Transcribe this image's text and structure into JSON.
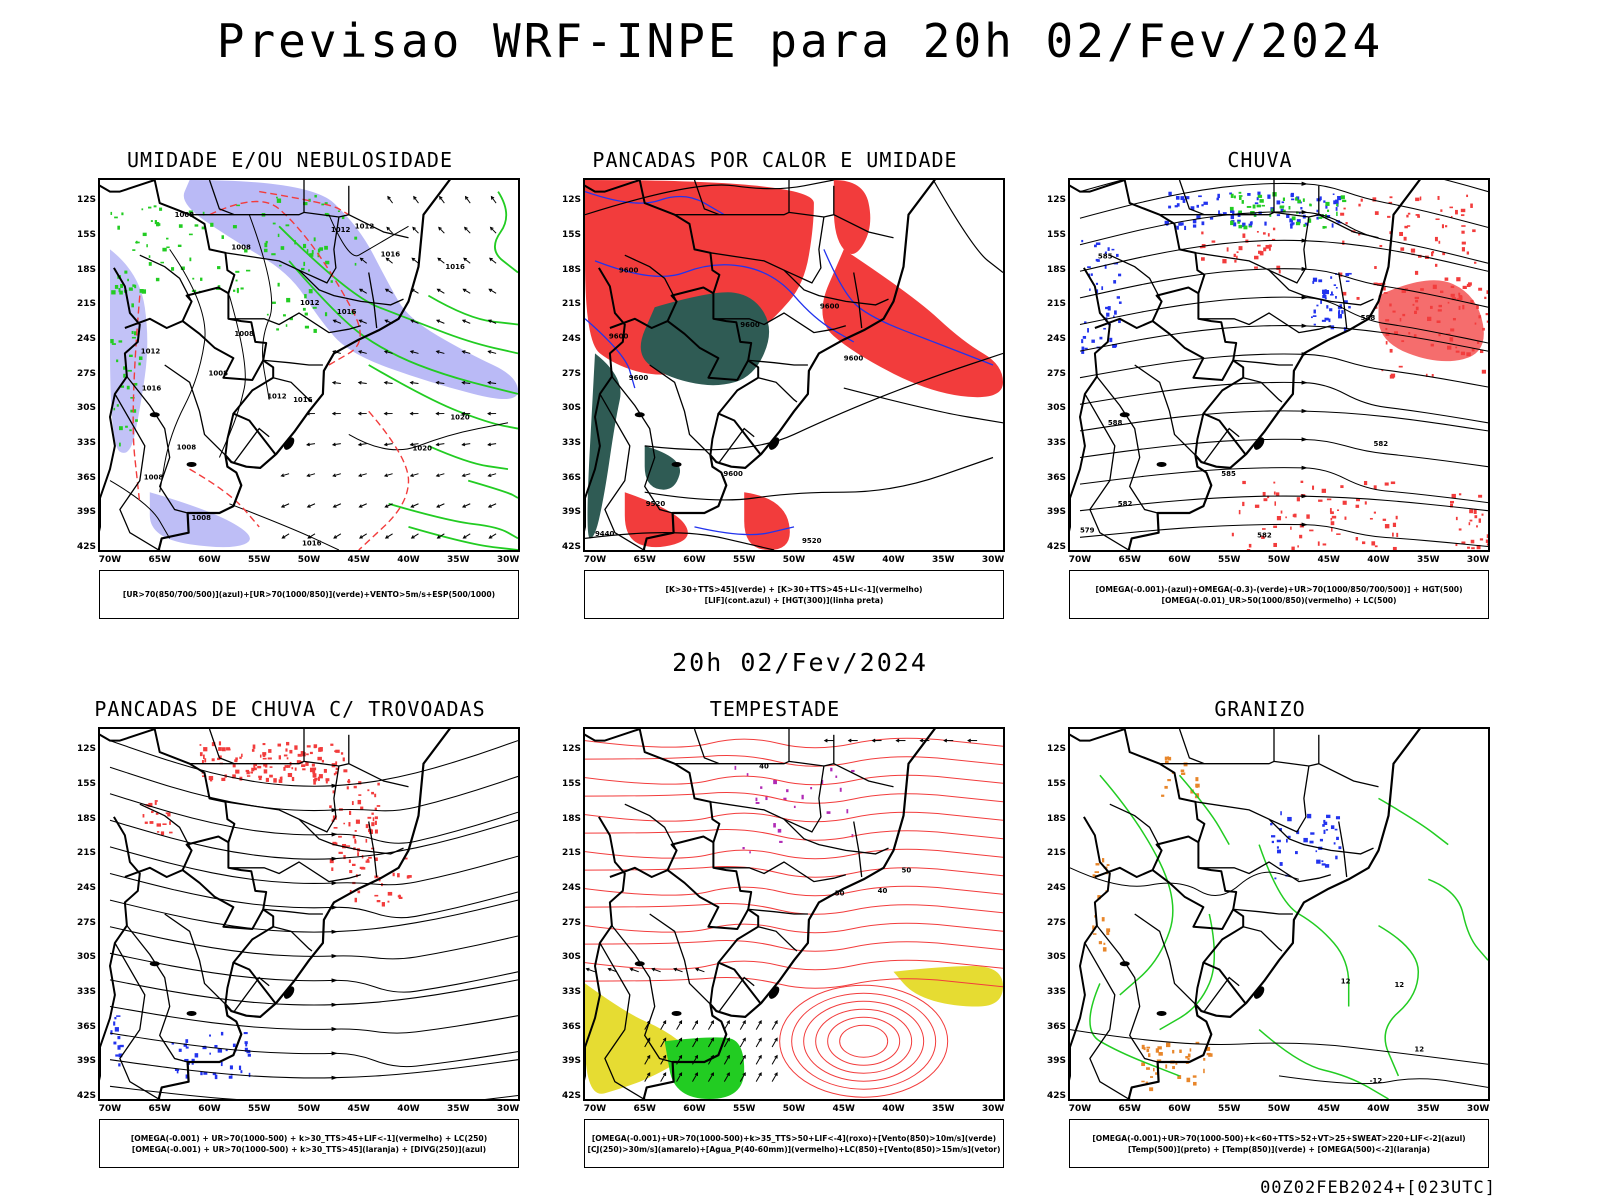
{
  "header": {
    "title": "Previsao WRF-INPE  para 20h 02/Fev/2024",
    "mid_title": "20h 02/Fev/2024",
    "footer_stamp": "00Z02FEB2024+[023UTC]"
  },
  "axes": {
    "lat_labels": [
      "12S",
      "15S",
      "18S",
      "21S",
      "24S",
      "27S",
      "30S",
      "33S",
      "36S",
      "39S",
      "42S"
    ],
    "lon_labels": [
      "70W",
      "65W",
      "60W",
      "55W",
      "50W",
      "45W",
      "40W",
      "35W",
      "30W"
    ],
    "lat_range": [
      -42,
      -10
    ],
    "lon_range": [
      -71,
      -29
    ]
  },
  "colors": {
    "umidade_alta": "#b3b3f5",
    "umidade_baixa": "#22cc22",
    "vermelho": "#f23c3c",
    "azul": "#2233ee",
    "verde": "#22cc22",
    "verde_escuro": "#2f5b54",
    "amarelo": "#e6dc32",
    "laranja": "#e8862a",
    "roxo": "#b02ab5",
    "preto": "#000000"
  },
  "chart_data": [
    {
      "type": "map",
      "title": "UMIDADE E/OU NEBULOSIDADE",
      "legend": [
        "[UR>70(850/700/500)](azul)+[UR>70(1000/850)](verde)+VENTO>5m/s+ESP(500/1000)"
      ],
      "contour_labels": [
        {
          "text": "1008",
          "lon": -63.5,
          "lat": -13.2
        },
        {
          "text": "1012",
          "lon": -47.8,
          "lat": -14.5
        },
        {
          "text": "1012",
          "lon": -45.4,
          "lat": -14.2
        },
        {
          "text": "1016",
          "lon": -42.8,
          "lat": -16.6
        },
        {
          "text": "1016",
          "lon": -36.3,
          "lat": -17.7
        },
        {
          "text": "1008",
          "lon": -57.8,
          "lat": -16.0
        },
        {
          "text": "1012",
          "lon": -50.9,
          "lat": -20.8
        },
        {
          "text": "1016",
          "lon": -47.2,
          "lat": -21.6
        },
        {
          "text": "1008",
          "lon": -57.5,
          "lat": -23.5
        },
        {
          "text": "1008",
          "lon": -60.1,
          "lat": -26.9
        },
        {
          "text": "1012",
          "lon": -54.2,
          "lat": -28.9
        },
        {
          "text": "1016",
          "lon": -51.6,
          "lat": -29.2
        },
        {
          "text": "1020",
          "lon": -35.8,
          "lat": -30.7
        },
        {
          "text": "1020",
          "lon": -39.6,
          "lat": -33.4
        },
        {
          "text": "1008",
          "lon": -63.3,
          "lat": -33.3
        },
        {
          "text": "1008",
          "lon": -66.6,
          "lat": -35.9
        },
        {
          "text": "1008",
          "lon": -61.8,
          "lat": -39.4
        },
        {
          "text": "1016",
          "lon": -50.7,
          "lat": -41.6
        },
        {
          "text": "1012",
          "lon": -66.9,
          "lat": -25.0
        },
        {
          "text": "1016",
          "lon": -66.8,
          "lat": -28.2
        }
      ]
    },
    {
      "type": "map",
      "title": "PANCADAS POR CALOR E UMIDADE",
      "legend": [
        "[K>30+TTS>45](verde) + [K>30+TTS>45+LI<-1](vermelho)",
        "[LIF](cont.azul) + [HGT(300)](linha preta)"
      ],
      "contour_labels": [
        {
          "text": "9600",
          "lon": -67.6,
          "lat": -18.0
        },
        {
          "text": "9600",
          "lon": -68.6,
          "lat": -23.7
        },
        {
          "text": "9600",
          "lon": -55.4,
          "lat": -22.7
        },
        {
          "text": "9600",
          "lon": -47.4,
          "lat": -21.1
        },
        {
          "text": "9600",
          "lon": -45.0,
          "lat": -25.6
        },
        {
          "text": "9600",
          "lon": -66.6,
          "lat": -27.3
        },
        {
          "text": "9600",
          "lon": -57.1,
          "lat": -35.6
        },
        {
          "text": "9520",
          "lon": -64.9,
          "lat": -38.2
        },
        {
          "text": "9440",
          "lon": -70.0,
          "lat": -40.8
        },
        {
          "text": "9520",
          "lon": -49.2,
          "lat": -41.4
        }
      ]
    },
    {
      "type": "map",
      "title": "CHUVA",
      "legend": [
        "[OMEGA(-0.001)-(azul)+OMEGA(-0.3)-(verde)+UR>70(1000/850/700/500)] + HGT(500)",
        "[OMEGA(-0.01)_UR>50(1000/850)(vermelho) + LC(500)"
      ],
      "contour_labels": [
        {
          "text": "585",
          "lon": -68.2,
          "lat": -16.8
        },
        {
          "text": "588",
          "lon": -67.2,
          "lat": -31.2
        },
        {
          "text": "588",
          "lon": -41.8,
          "lat": -22.1
        },
        {
          "text": "585",
          "lon": -55.8,
          "lat": -35.6
        },
        {
          "text": "582",
          "lon": -40.5,
          "lat": -33.0
        },
        {
          "text": "582",
          "lon": -66.2,
          "lat": -38.2
        },
        {
          "text": "582",
          "lon": -52.2,
          "lat": -40.9
        },
        {
          "text": "579",
          "lon": -70.0,
          "lat": -40.5
        }
      ]
    },
    {
      "type": "map",
      "title": "PANCADAS DE CHUVA C/ TROVOADAS",
      "legend": [
        "[OMEGA(-0.001) + UR>70(1000-500) + k>30_TTS>45+LIF<-1](vermelho) + LC(250)",
        "[OMEGA(-0.001) + UR>70(1000-500) + k>30_TTS>45](laranja) + [DIVG(250)](azul)"
      ],
      "contour_labels": []
    },
    {
      "type": "map",
      "title": "TEMPESTADE",
      "legend": [
        "[OMEGA(-0.001)+UR>70(1000-500)+k>35_TTS>50+LIF<-4](roxo)+[Vento(850)>10m/s](verde)",
        "[CJ(250)>30m/s](amarelo)+[Agua_P(40-60mm)](vermelho)+LC(850)+[Vento(850)>15m/s](vetor)"
      ],
      "contour_labels": [
        {
          "text": "40",
          "lon": -53.5,
          "lat": -13.4
        },
        {
          "text": "50",
          "lon": -45.9,
          "lat": -24.4
        },
        {
          "text": "40",
          "lon": -41.6,
          "lat": -24.2
        },
        {
          "text": "50",
          "lon": -39.2,
          "lat": -22.4
        }
      ]
    },
    {
      "type": "map",
      "title": "GRANIZO",
      "legend": [
        "[OMEGA(-0.001)+UR>70(1000-500)+k<60+TTS>52+VT>25+SWEAT>220+LIF<-2](azul)",
        "[Temp(500)](preto) + [Temp(850)](verde) + [OMEGA(500)<-2](laranja)"
      ],
      "contour_labels": [
        {
          "text": "12",
          "lon": -43.8,
          "lat": -32.0
        },
        {
          "text": "12",
          "lon": -38.4,
          "lat": -32.3
        },
        {
          "text": "12",
          "lon": -36.4,
          "lat": -37.9
        },
        {
          "text": "-12",
          "lon": -40.9,
          "lat": -40.6
        }
      ]
    }
  ]
}
